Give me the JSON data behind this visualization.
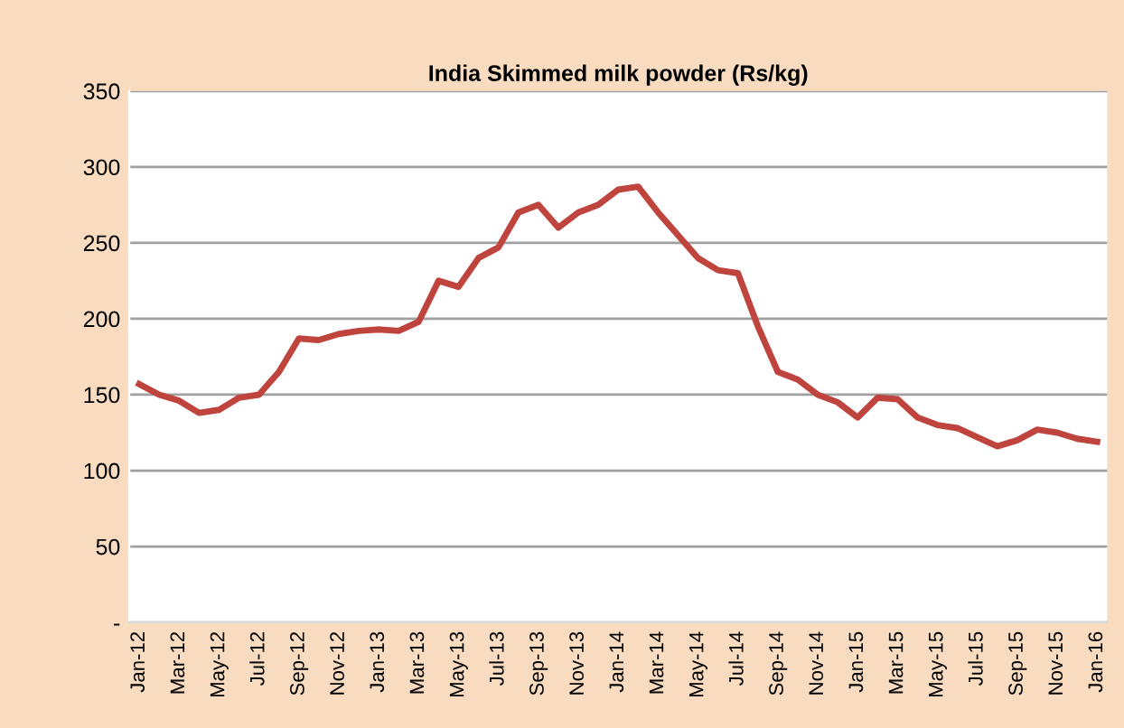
{
  "chart_data": {
    "type": "line",
    "title": "India Skimmed milk powder (Rs/kg)",
    "categories": [
      "Jan-12",
      null,
      "Mar-12",
      null,
      "May-12",
      null,
      "Jul-12",
      null,
      "Sep-12",
      null,
      "Nov-12",
      null,
      "Jan-13",
      null,
      "Mar-13",
      null,
      "May-13",
      null,
      "Jul-13",
      null,
      "Sep-13",
      null,
      "Nov-13",
      null,
      "Jan-14",
      null,
      "Mar-14",
      null,
      "May-14",
      null,
      "Jul-14",
      null,
      "Sep-14",
      null,
      "Nov-14",
      null,
      "Jan-15",
      null,
      "Mar-15",
      null,
      "May-15",
      null,
      "Jul-15",
      null,
      "Sep-15",
      null,
      "Nov-15",
      null,
      "Jan-16"
    ],
    "series": [
      {
        "color": "#c0443e",
        "values": [
          157,
          150,
          146,
          138,
          140,
          148,
          150,
          165,
          187,
          186,
          190,
          192,
          193,
          192,
          198,
          225,
          221,
          240,
          247,
          270,
          275,
          260,
          270,
          275,
          285,
          287,
          270,
          255,
          240,
          232,
          230,
          195,
          165,
          160,
          150,
          145,
          135,
          148,
          147,
          135,
          130,
          128,
          122,
          116,
          120,
          127,
          125,
          121,
          119
        ]
      }
    ],
    "ylim": [
      0,
      350
    ],
    "yticks": [
      {
        "value": 0,
        "label": "-"
      },
      50,
      100,
      150,
      200,
      250,
      300,
      350
    ],
    "grid": "y",
    "marker": "none",
    "line_style": "solid"
  }
}
